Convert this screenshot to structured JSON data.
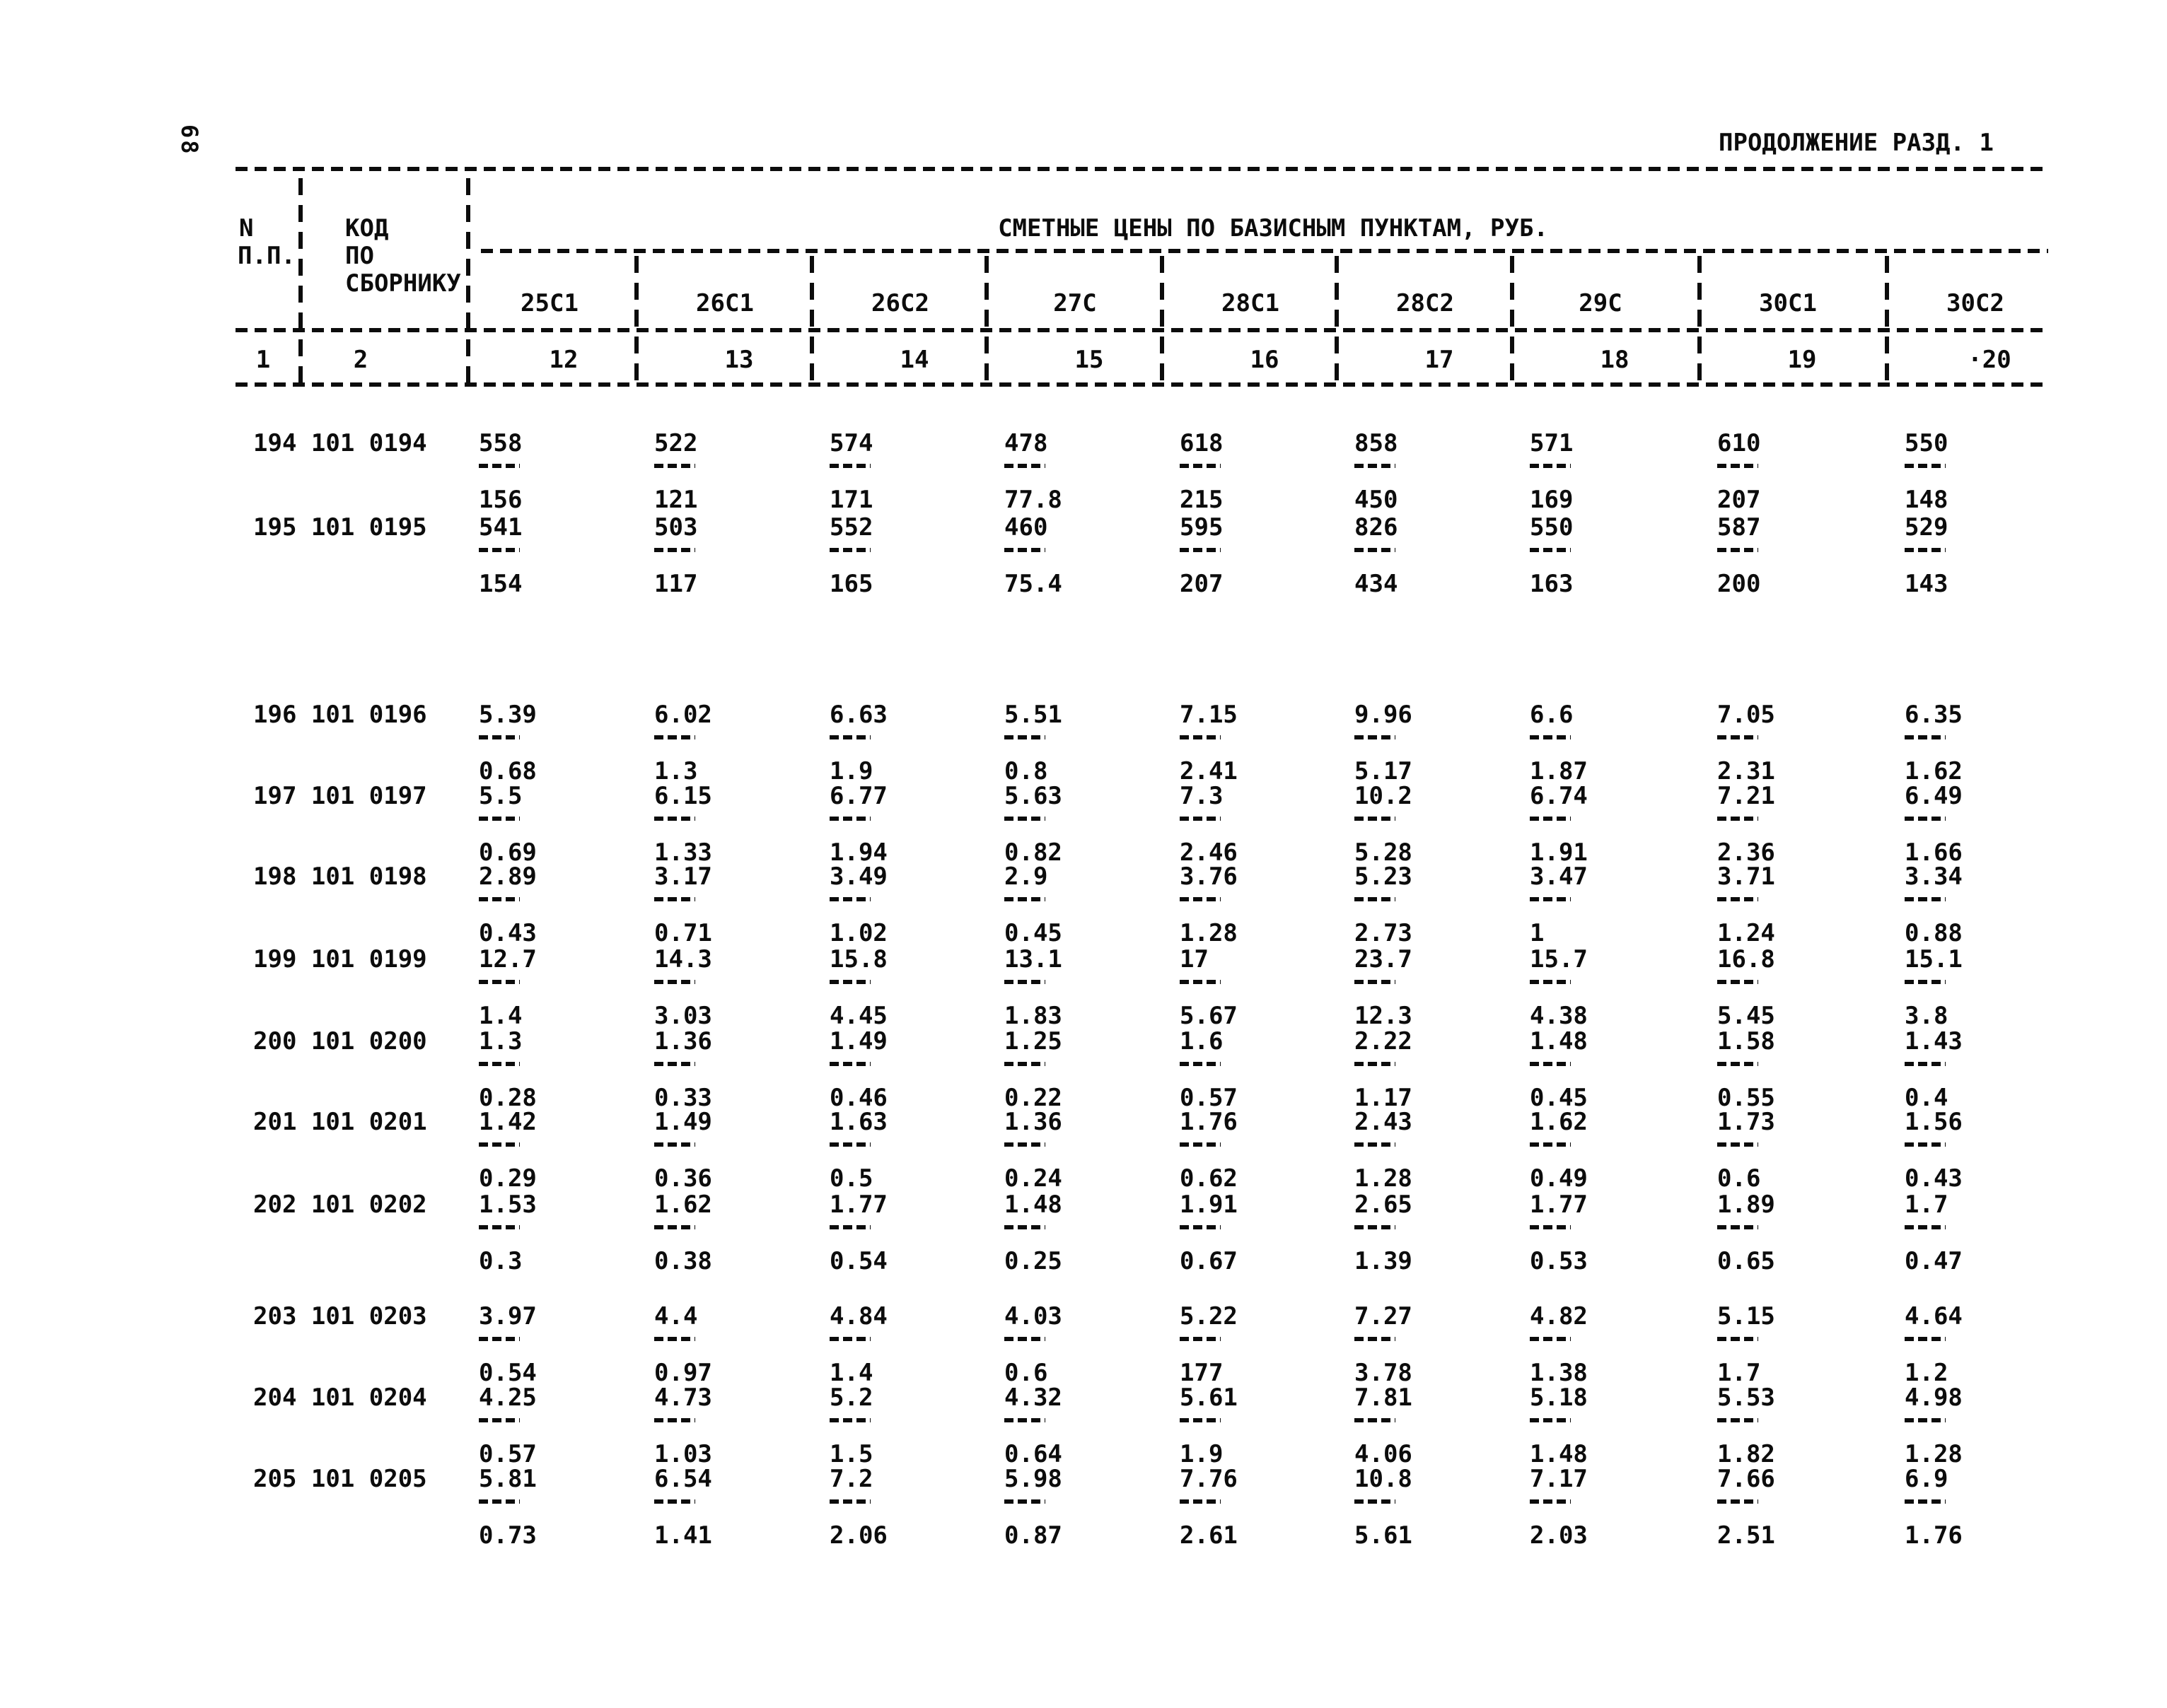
{
  "page": {
    "number": "68",
    "title": "ПРОДОЛЖЕНИЕ РАЗД. 1"
  },
  "table": {
    "header": {
      "col1_line1": "N",
      "col1_line2": "П.П.",
      "col2_line1": "КОД",
      "col2_line2": "ПО",
      "col2_line3": "СБОРНИКУ",
      "span_header": "СМЕТНЫЕ ЦЕНЫ ПО БАЗИСНЫМ ПУНКТАМ, РУБ.",
      "columns": [
        "25С1",
        "26С1",
        "26С2",
        "27С",
        "28С1",
        "28С2",
        "29С",
        "30С1",
        "30С2"
      ],
      "column_numbers": [
        "12",
        "13",
        "14",
        "15",
        "16",
        "17",
        "18",
        "19",
        "·20"
      ],
      "col1_number": "1",
      "col2_number": "2"
    },
    "rows": [
      {
        "num": "194",
        "code": "101 0194",
        "values": [
          [
            "558",
            "156"
          ],
          [
            "522",
            "121"
          ],
          [
            "574",
            "171"
          ],
          [
            "478",
            "77.8"
          ],
          [
            "618",
            "215"
          ],
          [
            "858",
            "450"
          ],
          [
            "571",
            "169"
          ],
          [
            "610",
            "207"
          ],
          [
            "550",
            "148"
          ]
        ]
      },
      {
        "num": "195",
        "code": "101 0195",
        "values": [
          [
            "541",
            "154"
          ],
          [
            "503",
            "117"
          ],
          [
            "552",
            "165"
          ],
          [
            "460",
            "75.4"
          ],
          [
            "595",
            "207"
          ],
          [
            "826",
            "434"
          ],
          [
            "550",
            "163"
          ],
          [
            "587",
            "200"
          ],
          [
            "529",
            "143"
          ]
        ]
      },
      {
        "num": "196",
        "code": "101 0196",
        "values": [
          [
            "5.39",
            "0.68"
          ],
          [
            "6.02",
            "1.3"
          ],
          [
            "6.63",
            "1.9"
          ],
          [
            "5.51",
            "0.8"
          ],
          [
            "7.15",
            "2.41"
          ],
          [
            "9.96",
            "5.17"
          ],
          [
            "6.6",
            "1.87"
          ],
          [
            "7.05",
            "2.31"
          ],
          [
            "6.35",
            "1.62"
          ]
        ]
      },
      {
        "num": "197",
        "code": "101 0197",
        "values": [
          [
            "5.5",
            "0.69"
          ],
          [
            "6.15",
            "1.33"
          ],
          [
            "6.77",
            "1.94"
          ],
          [
            "5.63",
            "0.82"
          ],
          [
            "7.3",
            "2.46"
          ],
          [
            "10.2",
            "5.28"
          ],
          [
            "6.74",
            "1.91"
          ],
          [
            "7.21",
            "2.36"
          ],
          [
            "6.49",
            "1.66"
          ]
        ]
      },
      {
        "num": "198",
        "code": "101 0198",
        "values": [
          [
            "2.89",
            "0.43"
          ],
          [
            "3.17",
            "0.71"
          ],
          [
            "3.49",
            "1.02"
          ],
          [
            "2.9",
            "0.45"
          ],
          [
            "3.76",
            "1.28"
          ],
          [
            "5.23",
            "2.73"
          ],
          [
            "3.47",
            "1"
          ],
          [
            "3.71",
            "1.24"
          ],
          [
            "3.34",
            "0.88"
          ]
        ]
      },
      {
        "num": "199",
        "code": "101 0199",
        "values": [
          [
            "12.7",
            "1.4"
          ],
          [
            "14.3",
            "3.03"
          ],
          [
            "15.8",
            "4.45"
          ],
          [
            "13.1",
            "1.83"
          ],
          [
            "17",
            "5.67"
          ],
          [
            "23.7",
            "12.3"
          ],
          [
            "15.7",
            "4.38"
          ],
          [
            "16.8",
            "5.45"
          ],
          [
            "15.1",
            "3.8"
          ]
        ]
      },
      {
        "num": "200",
        "code": "101 0200",
        "values": [
          [
            "1.3",
            "0.28"
          ],
          [
            "1.36",
            "0.33"
          ],
          [
            "1.49",
            "0.46"
          ],
          [
            "1.25",
            "0.22"
          ],
          [
            "1.6",
            "0.57"
          ],
          [
            "2.22",
            "1.17"
          ],
          [
            "1.48",
            "0.45"
          ],
          [
            "1.58",
            "0.55"
          ],
          [
            "1.43",
            "0.4"
          ]
        ]
      },
      {
        "num": "201",
        "code": "101 0201",
        "values": [
          [
            "1.42",
            "0.29"
          ],
          [
            "1.49",
            "0.36"
          ],
          [
            "1.63",
            "0.5"
          ],
          [
            "1.36",
            "0.24"
          ],
          [
            "1.76",
            "0.62"
          ],
          [
            "2.43",
            "1.28"
          ],
          [
            "1.62",
            "0.49"
          ],
          [
            "1.73",
            "0.6"
          ],
          [
            "1.56",
            "0.43"
          ]
        ]
      },
      {
        "num": "202",
        "code": "101 0202",
        "values": [
          [
            "1.53",
            "0.3"
          ],
          [
            "1.62",
            "0.38"
          ],
          [
            "1.77",
            "0.54"
          ],
          [
            "1.48",
            "0.25"
          ],
          [
            "1.91",
            "0.67"
          ],
          [
            "2.65",
            "1.39"
          ],
          [
            "1.77",
            "0.53"
          ],
          [
            "1.89",
            "0.65"
          ],
          [
            "1.7",
            "0.47"
          ]
        ]
      },
      {
        "num": "203",
        "code": "101 0203",
        "values": [
          [
            "3.97",
            "0.54"
          ],
          [
            "4.4",
            "0.97"
          ],
          [
            "4.84",
            "1.4"
          ],
          [
            "4.03",
            "0.6"
          ],
          [
            "5.22",
            "177"
          ],
          [
            "7.27",
            "3.78"
          ],
          [
            "4.82",
            "1.38"
          ],
          [
            "5.15",
            "1.7"
          ],
          [
            "4.64",
            "1.2"
          ]
        ]
      },
      {
        "num": "204",
        "code": "101 0204",
        "values": [
          [
            "4.25",
            "0.57"
          ],
          [
            "4.73",
            "1.03"
          ],
          [
            "5.2",
            "1.5"
          ],
          [
            "4.32",
            "0.64"
          ],
          [
            "5.61",
            "1.9"
          ],
          [
            "7.81",
            "4.06"
          ],
          [
            "5.18",
            "1.48"
          ],
          [
            "5.53",
            "1.82"
          ],
          [
            "4.98",
            "1.28"
          ]
        ]
      },
      {
        "num": "205",
        "code": "101 0205",
        "values": [
          [
            "5.81",
            "0.73"
          ],
          [
            "6.54",
            "1.41"
          ],
          [
            "7.2",
            "2.06"
          ],
          [
            "5.98",
            "0.87"
          ],
          [
            "7.76",
            "2.61"
          ],
          [
            "10.8",
            "5.61"
          ],
          [
            "7.17",
            "2.03"
          ],
          [
            "7.66",
            "2.51"
          ],
          [
            "6.9",
            "1.76"
          ]
        ]
      }
    ]
  }
}
